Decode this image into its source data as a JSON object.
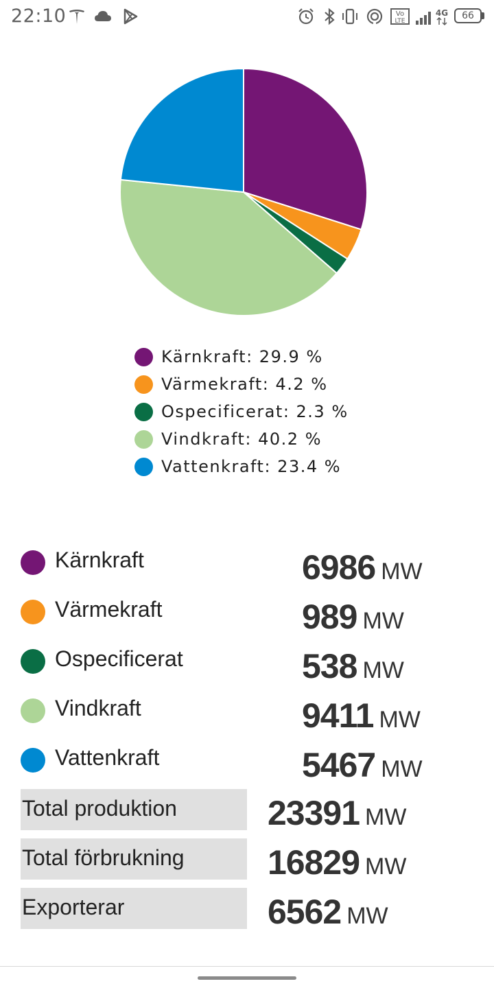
{
  "status_bar": {
    "time": "22:10",
    "battery": "66",
    "icons": [
      "tesla-icon",
      "cloud-icon",
      "play-store-icon",
      "alarm-icon",
      "bluetooth-icon",
      "vibrate-icon",
      "hotspot-icon",
      "volte-icon",
      "signal-icon",
      "4g-icon",
      "battery-icon"
    ]
  },
  "chart_data": {
    "type": "pie",
    "slices": [
      {
        "name": "Kärnkraft",
        "value": 29.9,
        "color": "#741674"
      },
      {
        "name": "Värmekraft",
        "value": 4.2,
        "color": "#f7941d"
      },
      {
        "name": "Ospecificerat",
        "value": 2.3,
        "color": "#0a6e45"
      },
      {
        "name": "Vindkraft",
        "value": 40.2,
        "color": "#add597"
      },
      {
        "name": "Vattenkraft",
        "value": 23.4,
        "color": "#0089d1"
      }
    ]
  },
  "legend": [
    {
      "label": "Kärnkraft: 29.9 %",
      "color": "#741674"
    },
    {
      "label": "Värmekraft: 4.2 %",
      "color": "#f7941d"
    },
    {
      "label": "Ospecificerat: 2.3 %",
      "color": "#0a6e45"
    },
    {
      "label": "Vindkraft: 40.2 %",
      "color": "#add597"
    },
    {
      "label": "Vattenkraft: 23.4 %",
      "color": "#0089d1"
    }
  ],
  "sources": [
    {
      "name": "Kärnkraft",
      "value": "6986",
      "unit": "MW",
      "color": "#741674"
    },
    {
      "name": "Värmekraft",
      "value": "989",
      "unit": "MW",
      "color": "#f7941d"
    },
    {
      "name": "Ospecificerat",
      "value": "538",
      "unit": "MW",
      "color": "#0a6e45"
    },
    {
      "name": "Vindkraft",
      "value": "9411",
      "unit": "MW",
      "color": "#add597"
    },
    {
      "name": "Vattenkraft",
      "value": "5467",
      "unit": "MW",
      "color": "#0089d1"
    }
  ],
  "totals": [
    {
      "label": "Total produktion",
      "value": "23391",
      "unit": "MW"
    },
    {
      "label": "Total förbrukning",
      "value": "16829",
      "unit": "MW"
    },
    {
      "label": "Exporterar",
      "value": "6562",
      "unit": "MW"
    }
  ]
}
